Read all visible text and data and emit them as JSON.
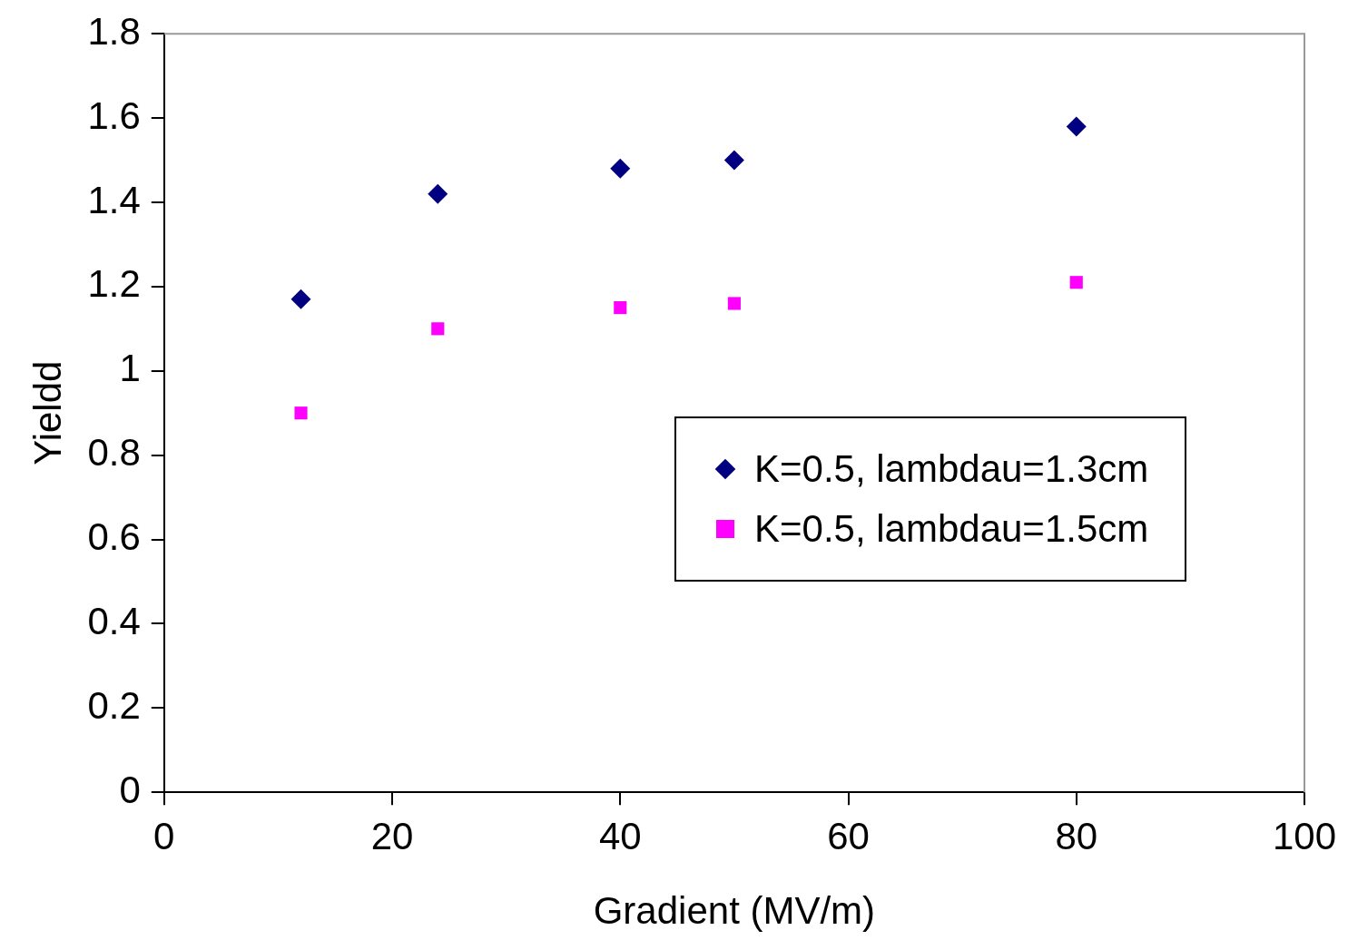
{
  "chart_data": {
    "type": "scatter",
    "xlabel": "Gradient (MV/m)",
    "ylabel": "Yieldd",
    "xlim": [
      0,
      100
    ],
    "xticks": [
      0,
      20,
      40,
      60,
      80,
      100
    ],
    "ylim": [
      0,
      1.8
    ],
    "yticks": [
      0,
      0.2,
      0.4,
      0.6,
      0.8,
      1,
      1.2,
      1.4,
      1.6,
      1.8
    ],
    "grid": false,
    "legend": "right",
    "series": [
      {
        "name": "K=0.5, lambdau=1.3cm",
        "color": "#000080",
        "marker": "diamond",
        "x": [
          12,
          24,
          40,
          50,
          80
        ],
        "values": [
          1.17,
          1.42,
          1.48,
          1.5,
          1.58
        ]
      },
      {
        "name": "K=0.5, lambdau=1.5cm",
        "color": "#ff00ff",
        "marker": "square",
        "x": [
          12,
          24,
          40,
          50,
          80
        ],
        "values": [
          0.9,
          1.1,
          1.15,
          1.16,
          1.21
        ]
      }
    ]
  }
}
